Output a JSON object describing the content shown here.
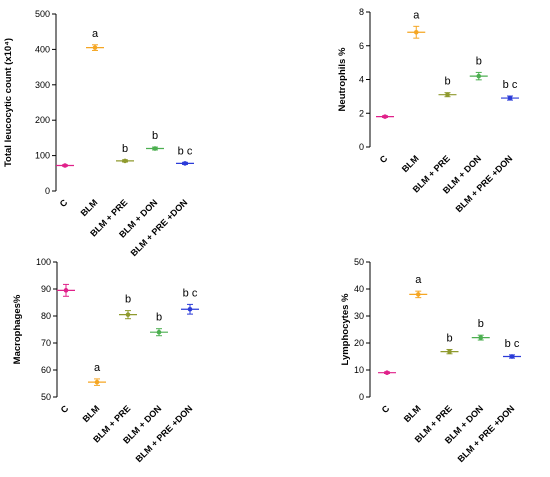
{
  "chart_data": [
    {
      "type": "scatter",
      "title": "",
      "ylabel": "Total leucocytic count (x10⁴)",
      "ylim": [
        0,
        500
      ],
      "yticks": [
        0,
        100,
        200,
        300,
        400,
        500
      ],
      "categories": [
        "C",
        "BLM",
        "BLM + PRE",
        "BLM + DON",
        "BLM + PRE +DON"
      ],
      "values": [
        72,
        405,
        85,
        120,
        78
      ],
      "errors": [
        2,
        8,
        3,
        4,
        3
      ],
      "labels": [
        "",
        "a",
        "b",
        "b",
        "b c"
      ],
      "colors": [
        "#e0218a",
        "#f5a623",
        "#8f9a2e",
        "#4caf50",
        "#2b3bd8"
      ]
    },
    {
      "type": "scatter",
      "title": "",
      "ylabel": "Neutrophils %",
      "ylim": [
        0,
        8
      ],
      "yticks": [
        0,
        2,
        4,
        6,
        8
      ],
      "categories": [
        "C",
        "BLM",
        "BLM + PRE",
        "BLM + DON",
        "BLM + PRE +DON"
      ],
      "values": [
        1.8,
        6.8,
        3.1,
        4.2,
        2.9
      ],
      "errors": [
        0.05,
        0.35,
        0.12,
        0.22,
        0.12
      ],
      "labels": [
        "",
        "a",
        "b",
        "b",
        "b c"
      ],
      "colors": [
        "#e0218a",
        "#f5a623",
        "#8f9a2e",
        "#4caf50",
        "#2b3bd8"
      ]
    },
    {
      "type": "scatter",
      "title": "",
      "ylabel": "Macrophages%",
      "ylim": [
        50,
        100
      ],
      "yticks": [
        50,
        60,
        70,
        80,
        90,
        100
      ],
      "categories": [
        "C",
        "BLM",
        "BLM + PRE",
        "BLM + DON",
        "BLM + PRE +DON"
      ],
      "values": [
        89.5,
        55.5,
        80.5,
        74,
        82.5
      ],
      "errors": [
        2.2,
        1.2,
        1.5,
        1.3,
        1.8
      ],
      "labels": [
        "",
        "a",
        "b",
        "b",
        "b c"
      ],
      "colors": [
        "#e0218a",
        "#f5a623",
        "#8f9a2e",
        "#4caf50",
        "#2b3bd8"
      ]
    },
    {
      "type": "scatter",
      "title": "",
      "ylabel": "Lymphocytes %",
      "ylim": [
        0,
        50
      ],
      "yticks": [
        0,
        10,
        20,
        30,
        40,
        50
      ],
      "categories": [
        "C",
        "BLM",
        "BLM + PRE",
        "BLM + DON",
        "BLM + PRE +DON"
      ],
      "values": [
        9,
        38,
        16.8,
        22,
        15
      ],
      "errors": [
        0.3,
        1.2,
        0.8,
        0.9,
        0.6
      ],
      "labels": [
        "",
        "a",
        "b",
        "b",
        "b c"
      ],
      "colors": [
        "#e0218a",
        "#f5a623",
        "#8f9a2e",
        "#4caf50",
        "#2b3bd8"
      ]
    }
  ]
}
